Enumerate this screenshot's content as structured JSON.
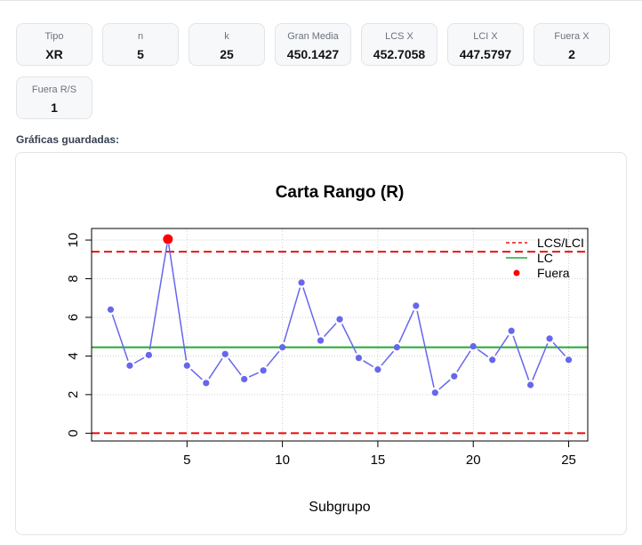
{
  "stats": [
    {
      "label": "Tipo",
      "value": "XR"
    },
    {
      "label": "n",
      "value": "5"
    },
    {
      "label": "k",
      "value": "25"
    },
    {
      "label": "Gran Media",
      "value": "450.1427"
    },
    {
      "label": "LCS X",
      "value": "452.7058"
    },
    {
      "label": "LCI X",
      "value": "447.5797"
    },
    {
      "label": "Fuera X",
      "value": "2"
    },
    {
      "label": "Fuera R/S",
      "value": "1"
    }
  ],
  "saved_label": "Gráficas guardadas:",
  "chart_data": {
    "type": "line",
    "title": "Carta Rango (R)",
    "xlabel": "Subgrupo",
    "ylabel": "",
    "xlim": [
      0,
      26
    ],
    "ylim": [
      -0.4,
      10.6
    ],
    "xticks": [
      5,
      10,
      15,
      20,
      25
    ],
    "yticks": [
      0,
      2,
      4,
      6,
      8,
      10
    ],
    "grid": true,
    "legend_position": "top-right",
    "x": [
      1,
      2,
      3,
      4,
      5,
      6,
      7,
      8,
      9,
      10,
      11,
      12,
      13,
      14,
      15,
      16,
      17,
      18,
      19,
      20,
      21,
      22,
      23,
      24,
      25
    ],
    "values": [
      6.4,
      3.5,
      4.05,
      10.05,
      3.5,
      2.6,
      4.1,
      2.8,
      3.25,
      4.45,
      7.8,
      4.8,
      5.9,
      3.9,
      3.3,
      4.45,
      6.6,
      2.1,
      2.95,
      4.5,
      3.8,
      5.3,
      2.5,
      4.9,
      3.8
    ],
    "center_line": 4.45,
    "ucl": 9.4,
    "lcl": 0,
    "out_of_control_x": [
      4
    ],
    "legend": [
      "LCS/LCI",
      "LC",
      "Fuera"
    ],
    "colors": {
      "series": "#6666ee",
      "limits": "#ee1111",
      "center": "#22aa33",
      "out": "#ff0000",
      "grid": "#d0d0d0"
    }
  }
}
